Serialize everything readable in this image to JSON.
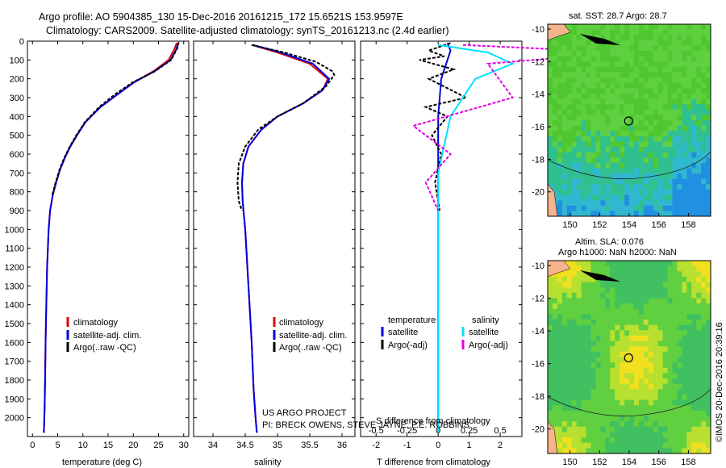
{
  "header": {
    "line1": "Argo profile: AO 5904385_130 15-Dec-2016 20161215_172 15.6521S 153.9597E",
    "line2": "Climatology: CARS2009. Satellite-adjusted climatology: synTS_20161213.nc (2.4d earlier)"
  },
  "colors": {
    "climatology": "#e00000",
    "satellite": "#0000e0",
    "argo": "#000000",
    "salinity_satellite": "#00e0ff",
    "salinity_argo": "#e000e0",
    "land": "#f5b48c"
  },
  "footer": {
    "project": "US ARGO PROJECT",
    "pi": "PI: BRECK OWENS, STEVE JAYNE, P.E. ROBBINS",
    "stamp": "©IMOS 20-Dec-2016 20:39:16"
  },
  "chart_data": [
    {
      "id": "temperature",
      "type": "line",
      "xlabel": "temperature (deg C)",
      "ylabel": "",
      "xlim": [
        -1,
        31
      ],
      "ylim": [
        2100,
        0
      ],
      "xticks": [
        0,
        5,
        10,
        15,
        20,
        25,
        30
      ],
      "xtick_labels": [
        "0",
        "5",
        "10",
        "15",
        "20",
        "25",
        "30"
      ],
      "yticks": [
        0,
        100,
        200,
        300,
        400,
        500,
        600,
        700,
        800,
        900,
        1000,
        1100,
        1200,
        1300,
        1400,
        1500,
        1600,
        1700,
        1800,
        1900,
        2000
      ],
      "ytick_labels": [
        "0",
        "100",
        "200",
        "300",
        "400",
        "500",
        "600",
        "700",
        "800",
        "900",
        "1000",
        "1100",
        "1200",
        "1300",
        "1400",
        "1500",
        "1600",
        "1700",
        "1800",
        "1900",
        "2000"
      ],
      "legend": [
        "climatology",
        "satellite-adj. clim.",
        "Argo(..raw -QC)"
      ],
      "series": [
        {
          "name": "climatology",
          "color": "#e00000",
          "dash": "solid",
          "x": [
            28.6,
            28.2,
            27.0,
            24.0,
            20.0,
            17.0,
            13.5,
            10.5,
            8.8,
            7.5,
            6.4,
            5.5,
            4.7,
            4.0,
            3.5,
            3.2,
            2.9,
            2.75,
            2.6,
            2.5,
            2.4,
            2.3,
            2.25
          ],
          "y": [
            10,
            40,
            100,
            160,
            220,
            280,
            350,
            430,
            500,
            560,
            620,
            680,
            750,
            820,
            900,
            1000,
            1200,
            1400,
            1600,
            1800,
            1950,
            2050,
            2080
          ]
        },
        {
          "name": "satellite-adj. clim.",
          "color": "#0000e0",
          "dash": "solid",
          "x": [
            28.9,
            28.6,
            27.4,
            24.2,
            20.1,
            17.0,
            13.5,
            10.5,
            8.8,
            7.5,
            6.4,
            5.5,
            4.7,
            4.0,
            3.5,
            3.2,
            2.9,
            2.75,
            2.6,
            2.5,
            2.4,
            2.3,
            2.25
          ],
          "y": [
            10,
            40,
            100,
            160,
            220,
            280,
            350,
            430,
            500,
            560,
            620,
            680,
            750,
            820,
            900,
            1000,
            1200,
            1400,
            1600,
            1800,
            1950,
            2050,
            2080
          ]
        },
        {
          "name": "Argo(..raw -QC)",
          "color": "#000000",
          "dash": "dashed",
          "x": [
            29.0,
            28.7,
            27.5,
            24.3,
            19.8,
            16.5,
            13.2,
            10.4,
            8.7,
            7.4,
            6.3,
            5.4,
            4.6,
            3.9
          ],
          "y": [
            5,
            40,
            100,
            160,
            220,
            280,
            350,
            430,
            500,
            560,
            620,
            680,
            750,
            820
          ]
        }
      ]
    },
    {
      "id": "salinity",
      "type": "line",
      "xlabel": "salinity",
      "xlim": [
        33.7,
        36.2
      ],
      "ylim": [
        2100,
        0
      ],
      "xticks": [
        34,
        34.5,
        35,
        35.5,
        36
      ],
      "xtick_labels": [
        "34",
        "34.5",
        "35",
        "35.5",
        "36"
      ],
      "legend": [
        "climatology",
        "satellite-adj. clim.",
        "Argo(..raw -QC)"
      ],
      "series": [
        {
          "name": "climatology",
          "color": "#e00000",
          "dash": "solid",
          "x": [
            34.6,
            35.0,
            35.5,
            35.78,
            35.7,
            35.4,
            35.0,
            34.75,
            34.55,
            34.47,
            34.45,
            34.46,
            34.5,
            34.55,
            34.6,
            34.63,
            34.66,
            34.68
          ],
          "y": [
            20,
            60,
            120,
            200,
            260,
            330,
            400,
            470,
            560,
            650,
            750,
            850,
            1000,
            1300,
            1600,
            1850,
            2000,
            2080
          ]
        },
        {
          "name": "satellite-adj. clim.",
          "color": "#0000e0",
          "dash": "solid",
          "x": [
            34.62,
            35.05,
            35.55,
            35.8,
            35.7,
            35.4,
            35.0,
            34.75,
            34.55,
            34.47,
            34.45,
            34.46,
            34.5,
            34.55,
            34.6,
            34.63,
            34.66,
            34.68
          ],
          "y": [
            20,
            60,
            120,
            200,
            260,
            330,
            400,
            470,
            560,
            650,
            750,
            850,
            1000,
            1300,
            1600,
            1850,
            2000,
            2080
          ]
        },
        {
          "name": "Argo(..raw -QC)",
          "color": "#000000",
          "dash": "dashed",
          "x": [
            34.6,
            35.1,
            35.6,
            35.85,
            35.88,
            35.75,
            35.4,
            35.0,
            34.7,
            34.5,
            34.4,
            34.38,
            34.4,
            34.45
          ],
          "y": [
            20,
            60,
            110,
            160,
            180,
            240,
            330,
            400,
            470,
            560,
            650,
            750,
            850,
            900
          ]
        }
      ]
    },
    {
      "id": "difference",
      "type": "line",
      "xlabel": "T difference from climatology",
      "xlabel_top": "S difference from climatology",
      "xlim": [
        -2.5,
        2.7
      ],
      "ylim": [
        2100,
        0
      ],
      "xticks": [
        -2,
        -1,
        0,
        1,
        2
      ],
      "xtick_labels": [
        "-2",
        "-1",
        "0",
        "1",
        "2"
      ],
      "s_xticks": [
        -0.5,
        -0.25,
        0,
        0.25,
        0.5
      ],
      "s_xtick_labels": [
        "-0.5",
        "-0.25",
        "0",
        "0.25",
        "0.5"
      ],
      "legend_temperature_title": "temperature",
      "legend_salinity_title": "salinity",
      "legend_temperature": [
        "satellite",
        "Argo(-adj)"
      ],
      "legend_salinity": [
        "satellite",
        "Argo(-adj)"
      ],
      "series": [
        {
          "name": "T satellite",
          "color": "#0000e0",
          "dash": "solid",
          "x": [
            0.3,
            0.4,
            0.3,
            0.2,
            0.1,
            0.05,
            0.0,
            0.0,
            0.0,
            0.0,
            0.0
          ],
          "y": [
            10,
            50,
            100,
            150,
            200,
            300,
            400,
            600,
            900,
            1500,
            2080
          ]
        },
        {
          "name": "T Argo(-adj)",
          "color": "#000000",
          "dash": "dashed",
          "x": [
            0.4,
            -0.3,
            0.2,
            -0.6,
            0.5,
            -0.3,
            0.9,
            -0.4,
            0.3,
            -0.2,
            0.1,
            -0.1,
            0.05
          ],
          "y": [
            10,
            50,
            80,
            100,
            150,
            200,
            300,
            350,
            400,
            500,
            600,
            750,
            900
          ]
        },
        {
          "name": "S satellite",
          "color": "#00e0ff",
          "dash": "solid",
          "x": [
            0.0,
            0.4,
            0.6,
            0.3,
            0.1,
            0.0,
            0.0,
            0.0
          ],
          "y": [
            20,
            60,
            120,
            200,
            400,
            700,
            1300,
            2080
          ]
        },
        {
          "name": "S Argo(-adj)",
          "color": "#e000e0",
          "dash": "dashed",
          "x": [
            0.2,
            1.5,
            0.4,
            0.6,
            -0.2,
            0.1,
            -0.1,
            0.0
          ],
          "y": [
            20,
            60,
            120,
            300,
            450,
            600,
            750,
            900
          ]
        }
      ]
    },
    {
      "id": "sst_map",
      "type": "heatmap",
      "title": "sat. SST: 28.7 Argo: 28.7",
      "xlim": [
        148.5,
        159.5
      ],
      "ylim": [
        -21.5,
        -9.7
      ],
      "xticks": [
        150,
        152,
        154,
        156,
        158
      ],
      "xtick_labels": [
        "150",
        "152",
        "154",
        "156",
        "158"
      ],
      "yticks": [
        -10,
        -12,
        -14,
        -16,
        -18,
        -20
      ],
      "ytick_labels": [
        "-10",
        "-12",
        "-14",
        "-16",
        "-18",
        "-20"
      ],
      "marker": {
        "lon": 153.96,
        "lat": -15.65
      }
    },
    {
      "id": "sla_map",
      "type": "heatmap",
      "title": "Altim. SLA: 0.076",
      "subtitle": "Argo h1000: NaN h2000: NaN",
      "xlim": [
        148.5,
        159.5
      ],
      "ylim": [
        -21.5,
        -9.7
      ],
      "xticks": [
        150,
        152,
        154,
        156,
        158
      ],
      "xtick_labels": [
        "150",
        "152",
        "154",
        "156",
        "158"
      ],
      "yticks": [
        -10,
        -12,
        -14,
        -16,
        -18,
        -20
      ],
      "ytick_labels": [
        "-10",
        "-12",
        "-14",
        "-16",
        "-18",
        "-20"
      ],
      "marker": {
        "lon": 153.96,
        "lat": -15.65
      }
    }
  ]
}
